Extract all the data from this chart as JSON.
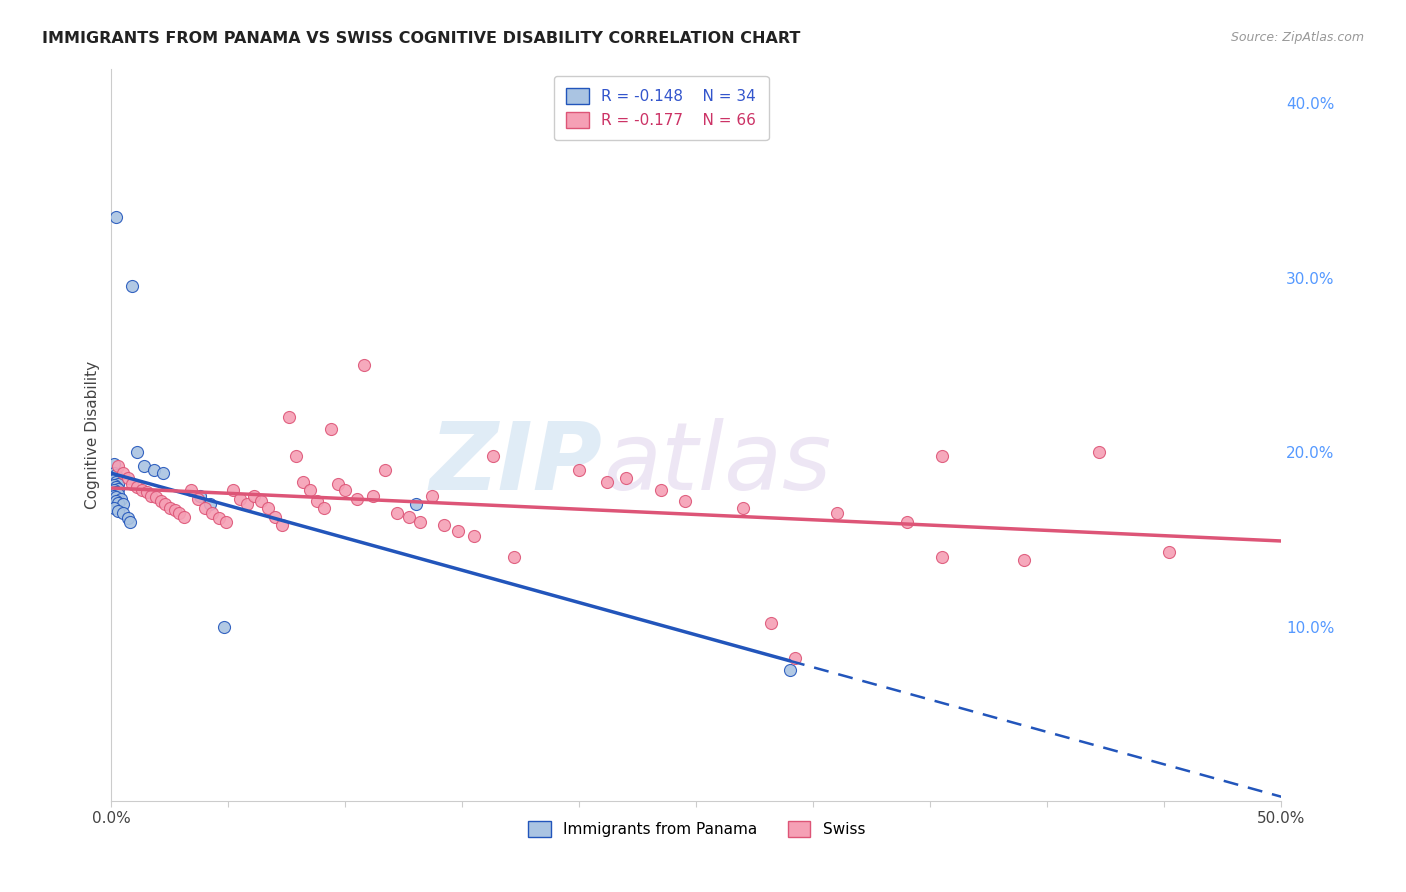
{
  "title": "IMMIGRANTS FROM PANAMA VS SWISS COGNITIVE DISABILITY CORRELATION CHART",
  "source": "Source: ZipAtlas.com",
  "ylabel": "Cognitive Disability",
  "xlim": [
    0.0,
    0.5
  ],
  "ylim": [
    0.0,
    0.42
  ],
  "xtick_positions": [
    0.0,
    0.05,
    0.1,
    0.15,
    0.2,
    0.25,
    0.3,
    0.35,
    0.4,
    0.45,
    0.5
  ],
  "xticklabels": [
    "0.0%",
    "",
    "",
    "",
    "",
    "",
    "",
    "",
    "",
    "",
    "50.0%"
  ],
  "yticks_right": [
    0.1,
    0.2,
    0.3,
    0.4
  ],
  "ytick_right_labels": [
    "10.0%",
    "20.0%",
    "30.0%",
    "40.0%"
  ],
  "legend1_r": "-0.148",
  "legend1_n": "34",
  "legend2_r": "-0.177",
  "legend2_n": "66",
  "panama_color": "#aac4e2",
  "swiss_color": "#f5a0b5",
  "panama_line_color": "#2255bb",
  "swiss_line_color": "#dd5577",
  "panama_dots": [
    [
      0.002,
      0.335
    ],
    [
      0.009,
      0.295
    ],
    [
      0.001,
      0.193
    ],
    [
      0.001,
      0.188
    ],
    [
      0.002,
      0.187
    ],
    [
      0.001,
      0.184
    ],
    [
      0.002,
      0.183
    ],
    [
      0.003,
      0.182
    ],
    [
      0.001,
      0.181
    ],
    [
      0.002,
      0.18
    ],
    [
      0.003,
      0.179
    ],
    [
      0.001,
      0.178
    ],
    [
      0.002,
      0.177
    ],
    [
      0.003,
      0.176
    ],
    [
      0.001,
      0.175
    ],
    [
      0.002,
      0.174
    ],
    [
      0.004,
      0.173
    ],
    [
      0.002,
      0.172
    ],
    [
      0.003,
      0.171
    ],
    [
      0.005,
      0.17
    ],
    [
      0.001,
      0.168
    ],
    [
      0.003,
      0.166
    ],
    [
      0.005,
      0.165
    ],
    [
      0.007,
      0.162
    ],
    [
      0.008,
      0.16
    ],
    [
      0.011,
      0.2
    ],
    [
      0.014,
      0.192
    ],
    [
      0.018,
      0.19
    ],
    [
      0.022,
      0.188
    ],
    [
      0.038,
      0.175
    ],
    [
      0.042,
      0.17
    ],
    [
      0.048,
      0.1
    ],
    [
      0.13,
      0.17
    ],
    [
      0.29,
      0.075
    ]
  ],
  "swiss_dots": [
    [
      0.003,
      0.192
    ],
    [
      0.005,
      0.188
    ],
    [
      0.007,
      0.185
    ],
    [
      0.009,
      0.182
    ],
    [
      0.011,
      0.18
    ],
    [
      0.013,
      0.178
    ],
    [
      0.015,
      0.177
    ],
    [
      0.017,
      0.175
    ],
    [
      0.019,
      0.174
    ],
    [
      0.021,
      0.172
    ],
    [
      0.023,
      0.17
    ],
    [
      0.025,
      0.168
    ],
    [
      0.027,
      0.167
    ],
    [
      0.029,
      0.165
    ],
    [
      0.031,
      0.163
    ],
    [
      0.034,
      0.178
    ],
    [
      0.037,
      0.173
    ],
    [
      0.04,
      0.168
    ],
    [
      0.043,
      0.165
    ],
    [
      0.046,
      0.162
    ],
    [
      0.049,
      0.16
    ],
    [
      0.052,
      0.178
    ],
    [
      0.055,
      0.173
    ],
    [
      0.058,
      0.17
    ],
    [
      0.061,
      0.175
    ],
    [
      0.064,
      0.172
    ],
    [
      0.067,
      0.168
    ],
    [
      0.07,
      0.163
    ],
    [
      0.073,
      0.158
    ],
    [
      0.076,
      0.22
    ],
    [
      0.079,
      0.198
    ],
    [
      0.082,
      0.183
    ],
    [
      0.085,
      0.178
    ],
    [
      0.088,
      0.172
    ],
    [
      0.091,
      0.168
    ],
    [
      0.094,
      0.213
    ],
    [
      0.097,
      0.182
    ],
    [
      0.1,
      0.178
    ],
    [
      0.105,
      0.173
    ],
    [
      0.108,
      0.25
    ],
    [
      0.112,
      0.175
    ],
    [
      0.117,
      0.19
    ],
    [
      0.122,
      0.165
    ],
    [
      0.127,
      0.163
    ],
    [
      0.132,
      0.16
    ],
    [
      0.137,
      0.175
    ],
    [
      0.142,
      0.158
    ],
    [
      0.148,
      0.155
    ],
    [
      0.155,
      0.152
    ],
    [
      0.163,
      0.198
    ],
    [
      0.172,
      0.14
    ],
    [
      0.2,
      0.19
    ],
    [
      0.212,
      0.183
    ],
    [
      0.235,
      0.178
    ],
    [
      0.282,
      0.102
    ],
    [
      0.292,
      0.082
    ],
    [
      0.355,
      0.14
    ],
    [
      0.39,
      0.138
    ],
    [
      0.355,
      0.198
    ],
    [
      0.422,
      0.2
    ],
    [
      0.452,
      0.143
    ],
    [
      0.31,
      0.165
    ],
    [
      0.34,
      0.16
    ],
    [
      0.27,
      0.168
    ],
    [
      0.245,
      0.172
    ],
    [
      0.22,
      0.185
    ]
  ],
  "background_color": "#ffffff",
  "grid_color": "#c8c8c8",
  "watermark_zip": "ZIP",
  "watermark_atlas": "atlas",
  "marker_size": 75
}
